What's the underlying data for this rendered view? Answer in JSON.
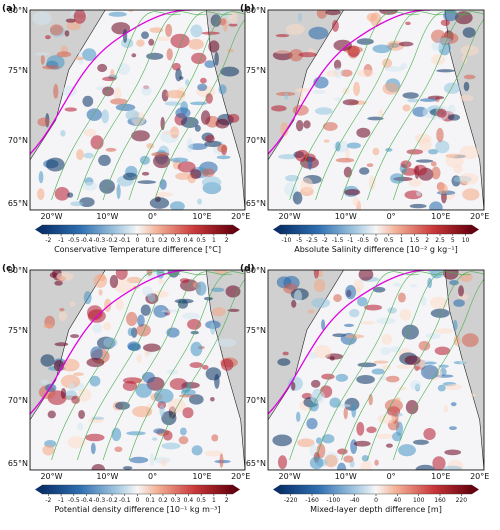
{
  "panels": [
    {
      "label": "(a)",
      "lat_ticks": [
        "80°N",
        "75°N",
        "70°N",
        "65°N"
      ],
      "lon_ticks": [
        "20°W",
        "10°W",
        "0°",
        "10°E",
        "20°E"
      ],
      "colorbar_label": "Conservative Temperature difference [°C]",
      "colorbar_ticks": [
        "-2",
        "-1",
        "-0.5",
        "-0.4",
        "-0.3",
        "-0.2",
        "-0.1",
        "0",
        "0.1",
        "0.2",
        "0.3",
        "0.4",
        "0.5",
        "1",
        "2"
      ]
    },
    {
      "label": "(b)",
      "lat_ticks": [
        "80°N",
        "75°N",
        "70°N",
        "65°N"
      ],
      "lon_ticks": [
        "20°W",
        "10°W",
        "0°",
        "10°E",
        "20°E"
      ],
      "colorbar_label": "Absolute Salinity difference [10⁻² g kg⁻¹]",
      "colorbar_ticks": [
        "-10",
        "-5",
        "-2.5",
        "-2",
        "-1.5",
        "-1",
        "-0.5",
        "0",
        "0.5",
        "1",
        "1.5",
        "2",
        "2.5",
        "5",
        "10"
      ]
    },
    {
      "label": "(c)",
      "lat_ticks": [
        "80°N",
        "75°N",
        "70°N",
        "65°N"
      ],
      "lon_ticks": [
        "20°W",
        "10°W",
        "0°",
        "10°E",
        "20°E"
      ],
      "colorbar_label": "Potential density difference [10⁻¹ kg m⁻³]",
      "colorbar_ticks": [
        "-2",
        "-1",
        "-0.5",
        "-0.4",
        "-0.3",
        "-0.2",
        "-0.1",
        "0",
        "0.1",
        "0.2",
        "0.3",
        "0.4",
        "0.5",
        "1",
        "2"
      ]
    },
    {
      "label": "(d)",
      "lat_ticks": [
        "80°N",
        "75°N",
        "70°N",
        "65°N"
      ],
      "lon_ticks": [
        "20°W",
        "10°W",
        "0°",
        "10°E",
        "20°E"
      ],
      "colorbar_label": "Mixed-layer depth difference [m]",
      "colorbar_ticks": [
        "-220",
        "-160",
        "-100",
        "-40",
        "0",
        "40",
        "100",
        "160",
        "220"
      ]
    }
  ]
}
